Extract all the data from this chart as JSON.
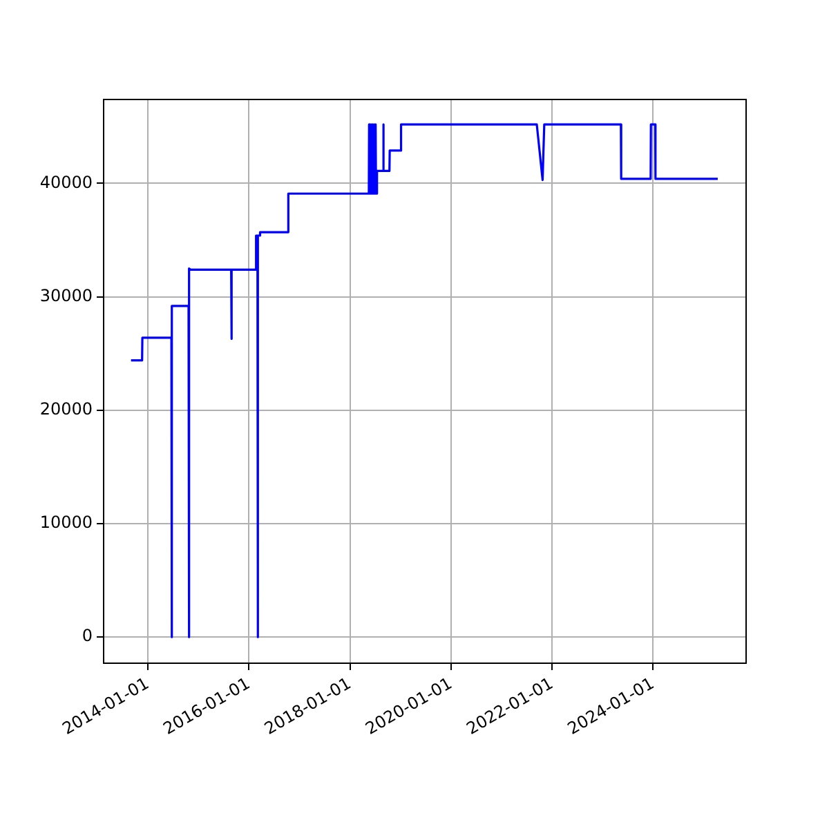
{
  "chart_data": {
    "type": "line",
    "x": [
      "2013-09-01",
      "2013-11-20",
      "2013-11-22",
      "2014-06-20",
      "2014-06-22",
      "2014-06-24",
      "2014-10-22",
      "2014-10-24",
      "2014-10-27",
      "2014-11-05",
      "2015-08-26",
      "2015-08-28",
      "2015-08-30",
      "2016-02-20",
      "2016-02-22",
      "2016-03-03",
      "2016-03-05",
      "2016-03-07",
      "2016-03-20",
      "2016-03-22",
      "2016-10-08",
      "2016-10-12",
      "2018-05-17",
      "2018-05-19",
      "2018-05-24",
      "2018-05-27",
      "2018-06-01",
      "2018-06-05",
      "2018-06-10",
      "2018-06-14",
      "2018-06-20",
      "2018-06-25",
      "2018-07-01",
      "2018-07-05",
      "2018-07-08",
      "2018-07-14",
      "2018-07-16",
      "2018-08-28",
      "2018-08-30",
      "2018-09-01",
      "2018-10-13",
      "2018-10-15",
      "2019-01-03",
      "2019-01-05",
      "2021-09-12",
      "2021-10-24",
      "2021-11-05",
      "2023-05-13",
      "2023-05-15",
      "2023-12-14",
      "2023-12-16",
      "2024-01-16",
      "2024-01-18",
      "2025-04-12"
    ],
    "series": [
      {
        "color": "#0000ff",
        "values": [
          24400,
          24400,
          26400,
          26400,
          0,
          29200,
          29200,
          0,
          32500,
          32400,
          32400,
          26300,
          32400,
          32400,
          35400,
          35400,
          0,
          35400,
          35400,
          35700,
          35700,
          39100,
          39100,
          45200,
          39100,
          45200,
          39100,
          45200,
          39100,
          45200,
          39100,
          45200,
          39100,
          45200,
          39100,
          39100,
          41100,
          41100,
          45200,
          41100,
          41100,
          42900,
          42900,
          45200,
          45200,
          40300,
          45200,
          45200,
          40400,
          40400,
          45200,
          45200,
          40400,
          40400
        ]
      }
    ],
    "xlim": [
      "2013-02-15",
      "2025-11-03"
    ],
    "xticks": [
      "2014-01-01",
      "2016-01-01",
      "2018-01-01",
      "2020-01-01",
      "2022-01-01",
      "2024-01-01"
    ],
    "ylim": [
      -2300,
      47400
    ],
    "yticks": [
      0,
      10000,
      20000,
      30000,
      40000
    ],
    "grid": true,
    "legend": false,
    "marker": "none",
    "line_style": "solid"
  }
}
